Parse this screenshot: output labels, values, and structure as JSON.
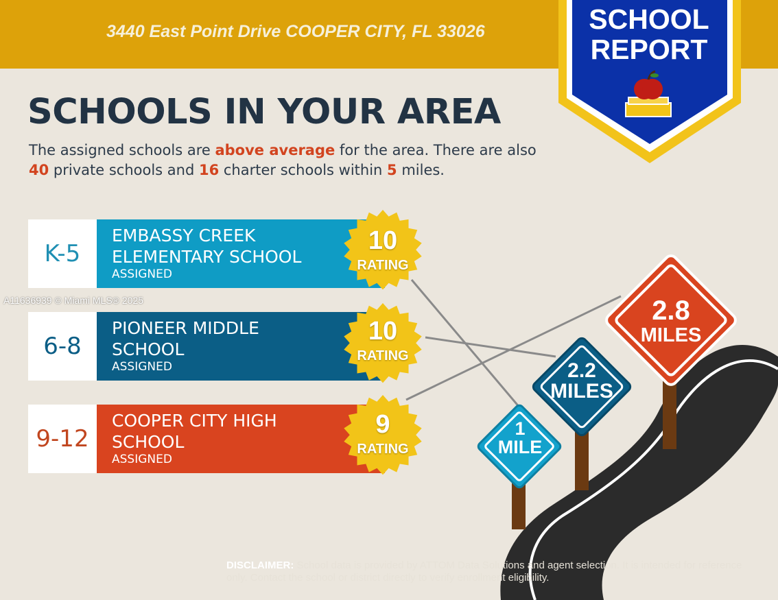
{
  "header": {
    "address": "3440 East Point Drive COOPER CITY, FL 33026"
  },
  "badge": {
    "line1": "SCHOOL",
    "line2": "REPORT",
    "icon": "apple-on-books-icon"
  },
  "heading": "SCHOOLS IN YOUR AREA",
  "summary": {
    "p1": "The assigned schools are ",
    "hl1": "above average",
    "p2": " for the area. There are also ",
    "hl2": "40",
    "p3": " private schools and ",
    "hl3": "16",
    "p4": " charter schools within ",
    "hl4": "5",
    "p5": " miles."
  },
  "schools": [
    {
      "grades": "K-5",
      "name": "EMBASSY CREEK ELEMENTARY SCHOOL",
      "status": "ASSIGNED",
      "rating": "10",
      "rating_label": "RATING",
      "color": "#0f9cc5",
      "grade_color": "#1f8fb3"
    },
    {
      "grades": "6-8",
      "name": "PIONEER MIDDLE SCHOOL",
      "status": "ASSIGNED",
      "rating": "10",
      "rating_label": "RATING",
      "color": "#0b5e86",
      "grade_color": "#0b5e86"
    },
    {
      "grades": "9-12",
      "name": "COOPER CITY HIGH SCHOOL",
      "status": "ASSIGNED",
      "rating": "9",
      "rating_label": "RATING",
      "color": "#d9441f",
      "grade_color": "#c1461f"
    }
  ],
  "signs": [
    {
      "line1": "1",
      "line2": "MILE",
      "color": "#13a2cc"
    },
    {
      "line1": "2.2",
      "line2": "MILES",
      "color": "#0b5e86"
    },
    {
      "line1": "2.8",
      "line2": "MILES",
      "color": "#d9441f"
    }
  ],
  "watermark": "A11636939 © Miami MLS® 2025",
  "disclaimer": {
    "label": "DISCLAIMER:",
    "text": " School data is provided by ATTOM Data Solutions and agent selection. It is intended for reference only. Contact the school or district directly to verify enrollment eligibility."
  },
  "colors": {
    "header": "#dda20a",
    "badge_blue": "#0b31a8",
    "badge_gold": "#f2c31a",
    "seal_gold": "#f2c418",
    "background": "#ebe6dd",
    "road": "#2b2b2b"
  }
}
